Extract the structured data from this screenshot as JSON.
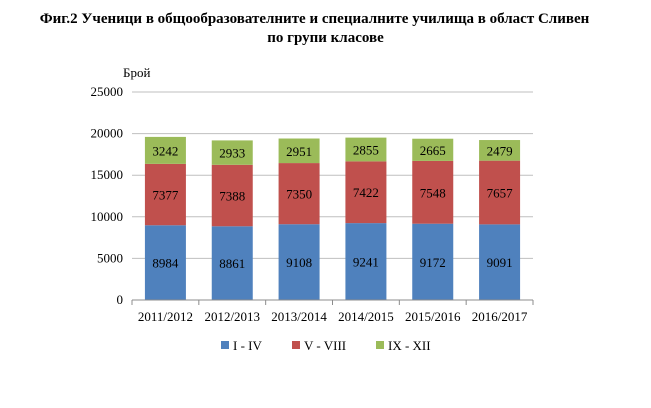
{
  "chart_data": {
    "type": "bar",
    "stacked": true,
    "title_line1": "Фиг.2 Ученици в общообразователните и специалните училища в област Сливен",
    "title_line2": "по групи класове",
    "ylabel": "Брой",
    "xlabel": "",
    "ylim": [
      0,
      25000
    ],
    "yticks": [
      "0",
      "5000",
      "10000",
      "15000",
      "20000",
      "25000"
    ],
    "grid": true,
    "legend_position": "bottom",
    "categories": [
      "2011/2012",
      "2012/2013",
      "2013/2014",
      "2014/2015",
      "2015/2016",
      "2016/2017"
    ],
    "series": [
      {
        "name": "I - IV",
        "color": "#4f81bd",
        "values": [
          8984,
          8861,
          9108,
          9241,
          9172,
          9091
        ]
      },
      {
        "name": "V - VIII",
        "color": "#c0504d",
        "values": [
          7377,
          7388,
          7350,
          7422,
          7548,
          7657
        ]
      },
      {
        "name": "IX - XII",
        "color": "#9bbb59",
        "values": [
          3242,
          2933,
          2951,
          2855,
          2665,
          2479
        ]
      }
    ]
  }
}
